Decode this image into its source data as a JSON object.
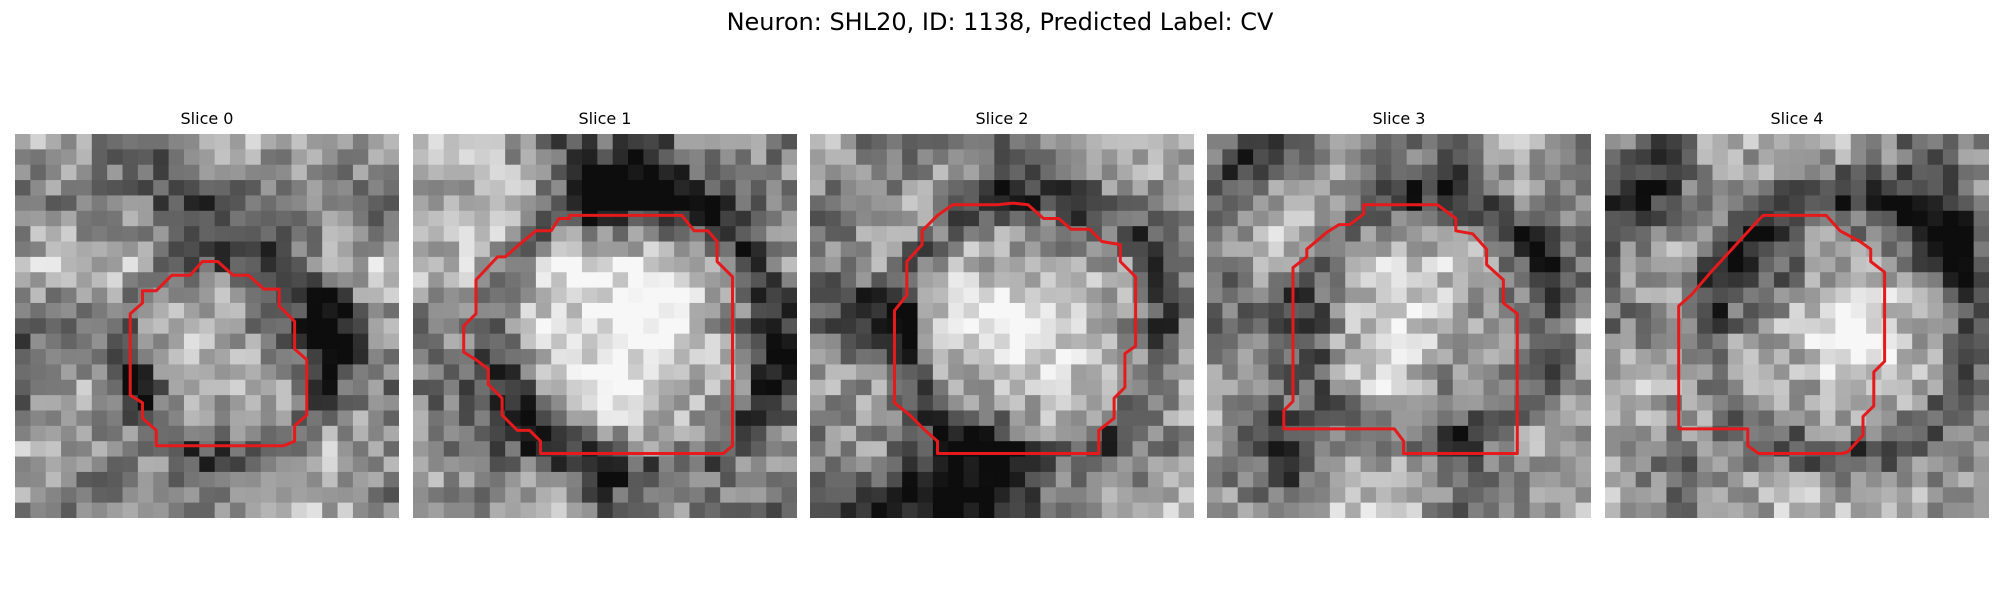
{
  "title": "Neuron: SHL20, ID: 1138, Predicted Label: CV",
  "panels": [
    {
      "label": "Slice 0"
    },
    {
      "label": "Slice 1"
    },
    {
      "label": "Slice 2"
    },
    {
      "label": "Slice 3"
    },
    {
      "label": "Slice 4"
    }
  ],
  "image": {
    "colormap": "grayscale",
    "grid": "25x25",
    "contour_color": "#e41a1c"
  }
}
